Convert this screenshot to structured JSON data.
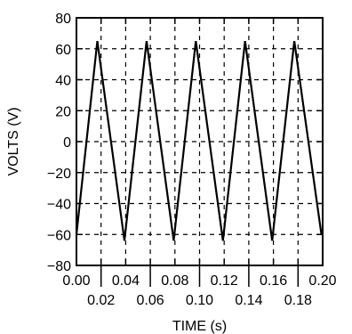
{
  "chart_data": {
    "type": "line",
    "title": "",
    "xlabel": "TIME (s)",
    "ylabel": "VOLTS (V)",
    "xlim": [
      0.0,
      0.2
    ],
    "ylim": [
      -80,
      80
    ],
    "grid": true,
    "grid_style": "dashed",
    "x_ticks_upper": [
      "0.00",
      "0.04",
      "0.08",
      "0.12",
      "0.16",
      "0.20"
    ],
    "x_ticks_lower": [
      "0.02",
      "0.06",
      "0.10",
      "0.14",
      "0.18"
    ],
    "y_ticks": [
      "80",
      "60",
      "40",
      "20",
      "0",
      "−20",
      "−40",
      "−60",
      "−80"
    ],
    "series": [
      {
        "color": "#000000",
        "x": [
          0.0,
          0.017,
          0.039,
          0.057,
          0.079,
          0.097,
          0.119,
          0.137,
          0.159,
          0.177,
          0.199
        ],
        "y": [
          -60,
          65,
          -64,
          65,
          -64,
          65,
          -64,
          65,
          -64,
          65,
          -60
        ]
      }
    ]
  }
}
